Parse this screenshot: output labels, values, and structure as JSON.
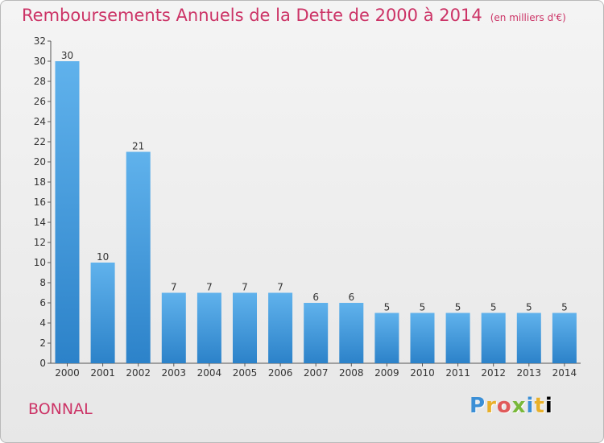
{
  "title": "Remboursements Annuels de la Dette de 2000 à 2014",
  "subtitle": "(en milliers d'€)",
  "commune": "BONNAL",
  "logo": "Proxiti",
  "colors": {
    "bar_top": "#60b2ec",
    "bar_bottom": "#2c82c9",
    "title": "#cc3366"
  },
  "chart_data": {
    "type": "bar",
    "title": "Remboursements Annuels de la Dette de 2000 à 2014",
    "subtitle": "(en milliers d'€)",
    "xlabel": "",
    "ylabel": "",
    "categories": [
      "2000",
      "2001",
      "2002",
      "2003",
      "2004",
      "2005",
      "2006",
      "2007",
      "2008",
      "2009",
      "2010",
      "2011",
      "2012",
      "2013",
      "2014"
    ],
    "values": [
      30,
      10,
      21,
      7,
      7,
      7,
      7,
      6,
      6,
      5,
      5,
      5,
      5,
      5,
      5
    ],
    "ylim": [
      0,
      32
    ],
    "yticks": [
      0,
      2,
      4,
      6,
      8,
      10,
      12,
      14,
      16,
      18,
      20,
      22,
      24,
      26,
      28,
      30,
      32
    ],
    "grid": false,
    "data_labels": true
  }
}
